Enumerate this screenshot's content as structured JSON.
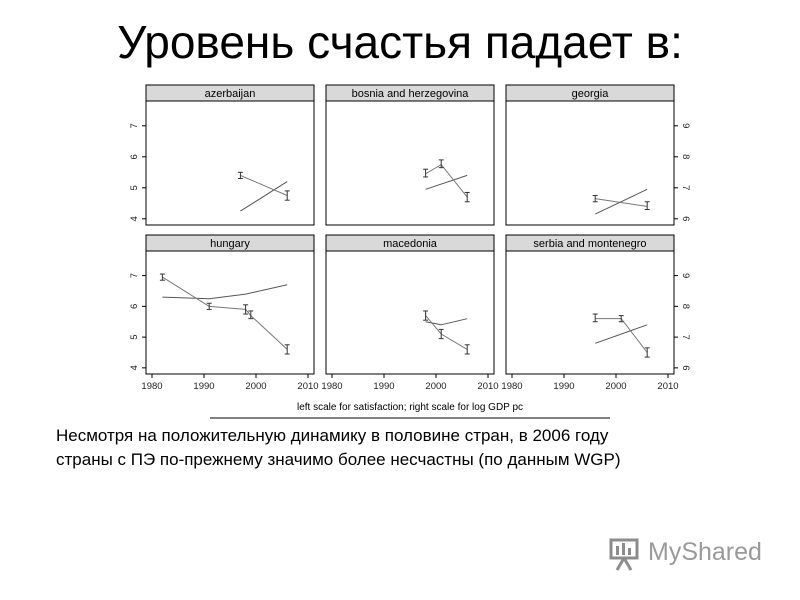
{
  "slide": {
    "title": "Уровень счастья падает в:",
    "caption_lines": [
      "Несмотря на положительную динамику в половине стран, в 2006 году",
      "страны с ПЭ по-прежнему значимо более несчастны (по данным WGP)"
    ],
    "logo_text": "MyShared",
    "logo_icon": "presentation-board-icon"
  },
  "chart_data": {
    "type": "line",
    "note": "left scale for satisfaction; right scale for log GDP pc",
    "x_ticks": [
      "1980",
      "1990",
      "2000",
      "2010"
    ],
    "xlim": [
      1980,
      2010
    ],
    "left_ticks": [
      "4",
      "5",
      "6",
      "7"
    ],
    "left_ylim": [
      3.8,
      7.8
    ],
    "right_ticks": [
      "6",
      "7",
      "8",
      "9"
    ],
    "right_ylim": [
      5.8,
      9.8
    ],
    "panels": [
      {
        "name": "azerbaijan",
        "satisfaction": [
          {
            "x": 1997,
            "y": 5.4,
            "lo": 5.3,
            "hi": 5.5
          },
          {
            "x": 2006,
            "y": 4.75,
            "lo": 4.6,
            "hi": 4.9
          }
        ],
        "gdp": [
          {
            "x": 1997,
            "y": 6.25
          },
          {
            "x": 2006,
            "y": 7.2
          }
        ]
      },
      {
        "name": "bosnia and herzegovina",
        "satisfaction": [
          {
            "x": 1998,
            "y": 5.45,
            "lo": 5.35,
            "hi": 5.6
          },
          {
            "x": 2001,
            "y": 5.75,
            "lo": 5.65,
            "hi": 5.9
          },
          {
            "x": 2006,
            "y": 4.7,
            "lo": 4.55,
            "hi": 4.85
          }
        ],
        "gdp": [
          {
            "x": 1998,
            "y": 6.95
          },
          {
            "x": 2006,
            "y": 7.4
          }
        ]
      },
      {
        "name": "georgia",
        "satisfaction": [
          {
            "x": 1996,
            "y": 4.65,
            "lo": 4.55,
            "hi": 4.75
          },
          {
            "x": 2006,
            "y": 4.4,
            "lo": 4.3,
            "hi": 4.55
          }
        ],
        "gdp": [
          {
            "x": 1996,
            "y": 6.15
          },
          {
            "x": 2006,
            "y": 6.95
          }
        ]
      },
      {
        "name": "hungary",
        "satisfaction": [
          {
            "x": 1982,
            "y": 6.95,
            "lo": 6.85,
            "hi": 7.05
          },
          {
            "x": 1991,
            "y": 6.0,
            "lo": 5.9,
            "hi": 6.1
          },
          {
            "x": 1998,
            "y": 5.9,
            "lo": 5.75,
            "hi": 6.05
          },
          {
            "x": 1999,
            "y": 5.7,
            "lo": 5.6,
            "hi": 5.85
          },
          {
            "x": 2006,
            "y": 4.6,
            "lo": 4.45,
            "hi": 4.75
          }
        ],
        "gdp": [
          {
            "x": 1982,
            "y": 8.3
          },
          {
            "x": 1991,
            "y": 8.25
          },
          {
            "x": 1998,
            "y": 8.4
          },
          {
            "x": 2006,
            "y": 8.7
          }
        ]
      },
      {
        "name": "macedonia",
        "satisfaction": [
          {
            "x": 1998,
            "y": 5.7,
            "lo": 5.55,
            "hi": 5.85
          },
          {
            "x": 2001,
            "y": 5.1,
            "lo": 4.95,
            "hi": 5.25
          },
          {
            "x": 2006,
            "y": 4.6,
            "lo": 4.45,
            "hi": 4.75
          }
        ],
        "gdp": [
          {
            "x": 1998,
            "y": 7.5
          },
          {
            "x": 2001,
            "y": 7.4
          },
          {
            "x": 2006,
            "y": 7.6
          }
        ]
      },
      {
        "name": "serbia and montenegro",
        "satisfaction": [
          {
            "x": 1996,
            "y": 5.6,
            "lo": 5.5,
            "hi": 5.75
          },
          {
            "x": 2001,
            "y": 5.6,
            "lo": 5.5,
            "hi": 5.7
          },
          {
            "x": 2006,
            "y": 4.5,
            "lo": 4.35,
            "hi": 4.65
          }
        ],
        "gdp": [
          {
            "x": 1996,
            "y": 6.8
          },
          {
            "x": 2006,
            "y": 7.4
          }
        ]
      }
    ]
  }
}
